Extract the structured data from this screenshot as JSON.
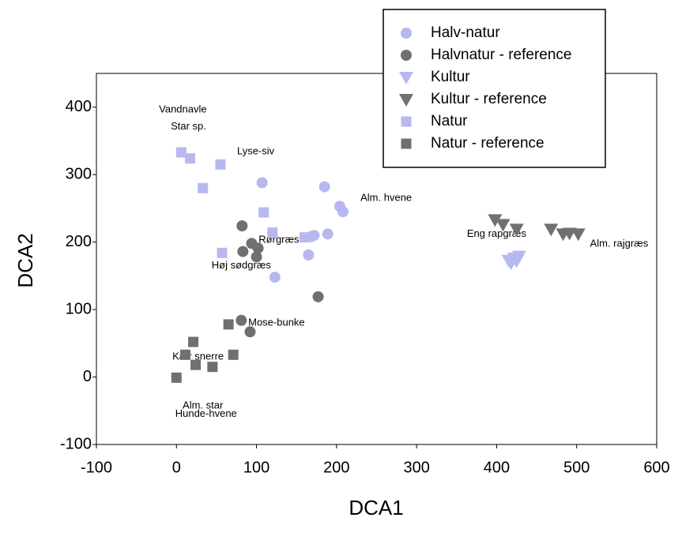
{
  "chart_data": {
    "type": "scatter",
    "x_label": "DCA1",
    "y_label": "DCA2",
    "xlim": [
      -100,
      600
    ],
    "ylim": [
      -100,
      450
    ],
    "xticks": [
      -100,
      0,
      100,
      200,
      300,
      400,
      500,
      600
    ],
    "yticks": [
      -100,
      0,
      100,
      200,
      300,
      400
    ],
    "grid": false,
    "legend": "upper right",
    "series": [
      {
        "name": "Halv-natur",
        "color": "#b8b8f0",
        "marker": "circle",
        "x": [
          107,
          185,
          204,
          208,
          172,
          168,
          189,
          165,
          123
        ],
        "values": [
          288,
          282,
          253,
          245,
          210,
          208,
          212,
          181,
          148
        ]
      },
      {
        "name": "Halvnatur - reference",
        "color": "#707070",
        "marker": "circle",
        "x": [
          82,
          94,
          102,
          100,
          83,
          177,
          81,
          92
        ],
        "values": [
          224,
          198,
          191,
          178,
          186,
          119,
          84,
          67
        ]
      },
      {
        "name": "Kultur",
        "color": "#b8b8f0",
        "marker": "triangle",
        "x": [
          415,
          422,
          428,
          418,
          425
        ],
        "values": [
          173,
          176,
          179,
          169,
          172
        ]
      },
      {
        "name": "Kultur - reference",
        "color": "#707070",
        "marker": "triangle",
        "x": [
          398,
          408,
          425,
          468,
          483,
          491,
          502
        ],
        "values": [
          233,
          226,
          219,
          219,
          212,
          213,
          212
        ]
      },
      {
        "name": "Natur",
        "color": "#b8b8f0",
        "marker": "square",
        "x": [
          6,
          17,
          55,
          33,
          109,
          120,
          160,
          57
        ],
        "values": [
          333,
          324,
          315,
          280,
          244,
          214,
          207,
          184
        ]
      },
      {
        "name": "Natur - reference",
        "color": "#707070",
        "marker": "square",
        "x": [
          65,
          21,
          11,
          71,
          24,
          45,
          0
        ],
        "values": [
          78,
          52,
          33,
          33,
          18,
          15,
          -1
        ]
      }
    ],
    "annotations": [
      {
        "text": "Vandnavle",
        "x": 8,
        "y": 396
      },
      {
        "text": "Star sp.",
        "x": 15,
        "y": 371
      },
      {
        "text": "Lyse-siv",
        "x": 99,
        "y": 334
      },
      {
        "text": "Alm. hvene",
        "x": 262,
        "y": 265
      },
      {
        "text": "Eng rapgræs",
        "x": 400,
        "y": 212
      },
      {
        "text": "Alm. rajgræs",
        "x": 553,
        "y": 197
      },
      {
        "text": "Rørgræs",
        "x": 128,
        "y": 203
      },
      {
        "text": "Høj sødgræs",
        "x": 81,
        "y": 165
      },
      {
        "text": "Mose-bunke",
        "x": 125,
        "y": 80
      },
      {
        "text": "Kær snerre",
        "x": 27,
        "y": 30
      },
      {
        "text": "Alm. star",
        "x": 33,
        "y": -43
      },
      {
        "text": "Hunde-hvene",
        "x": 37,
        "y": -55
      }
    ]
  }
}
